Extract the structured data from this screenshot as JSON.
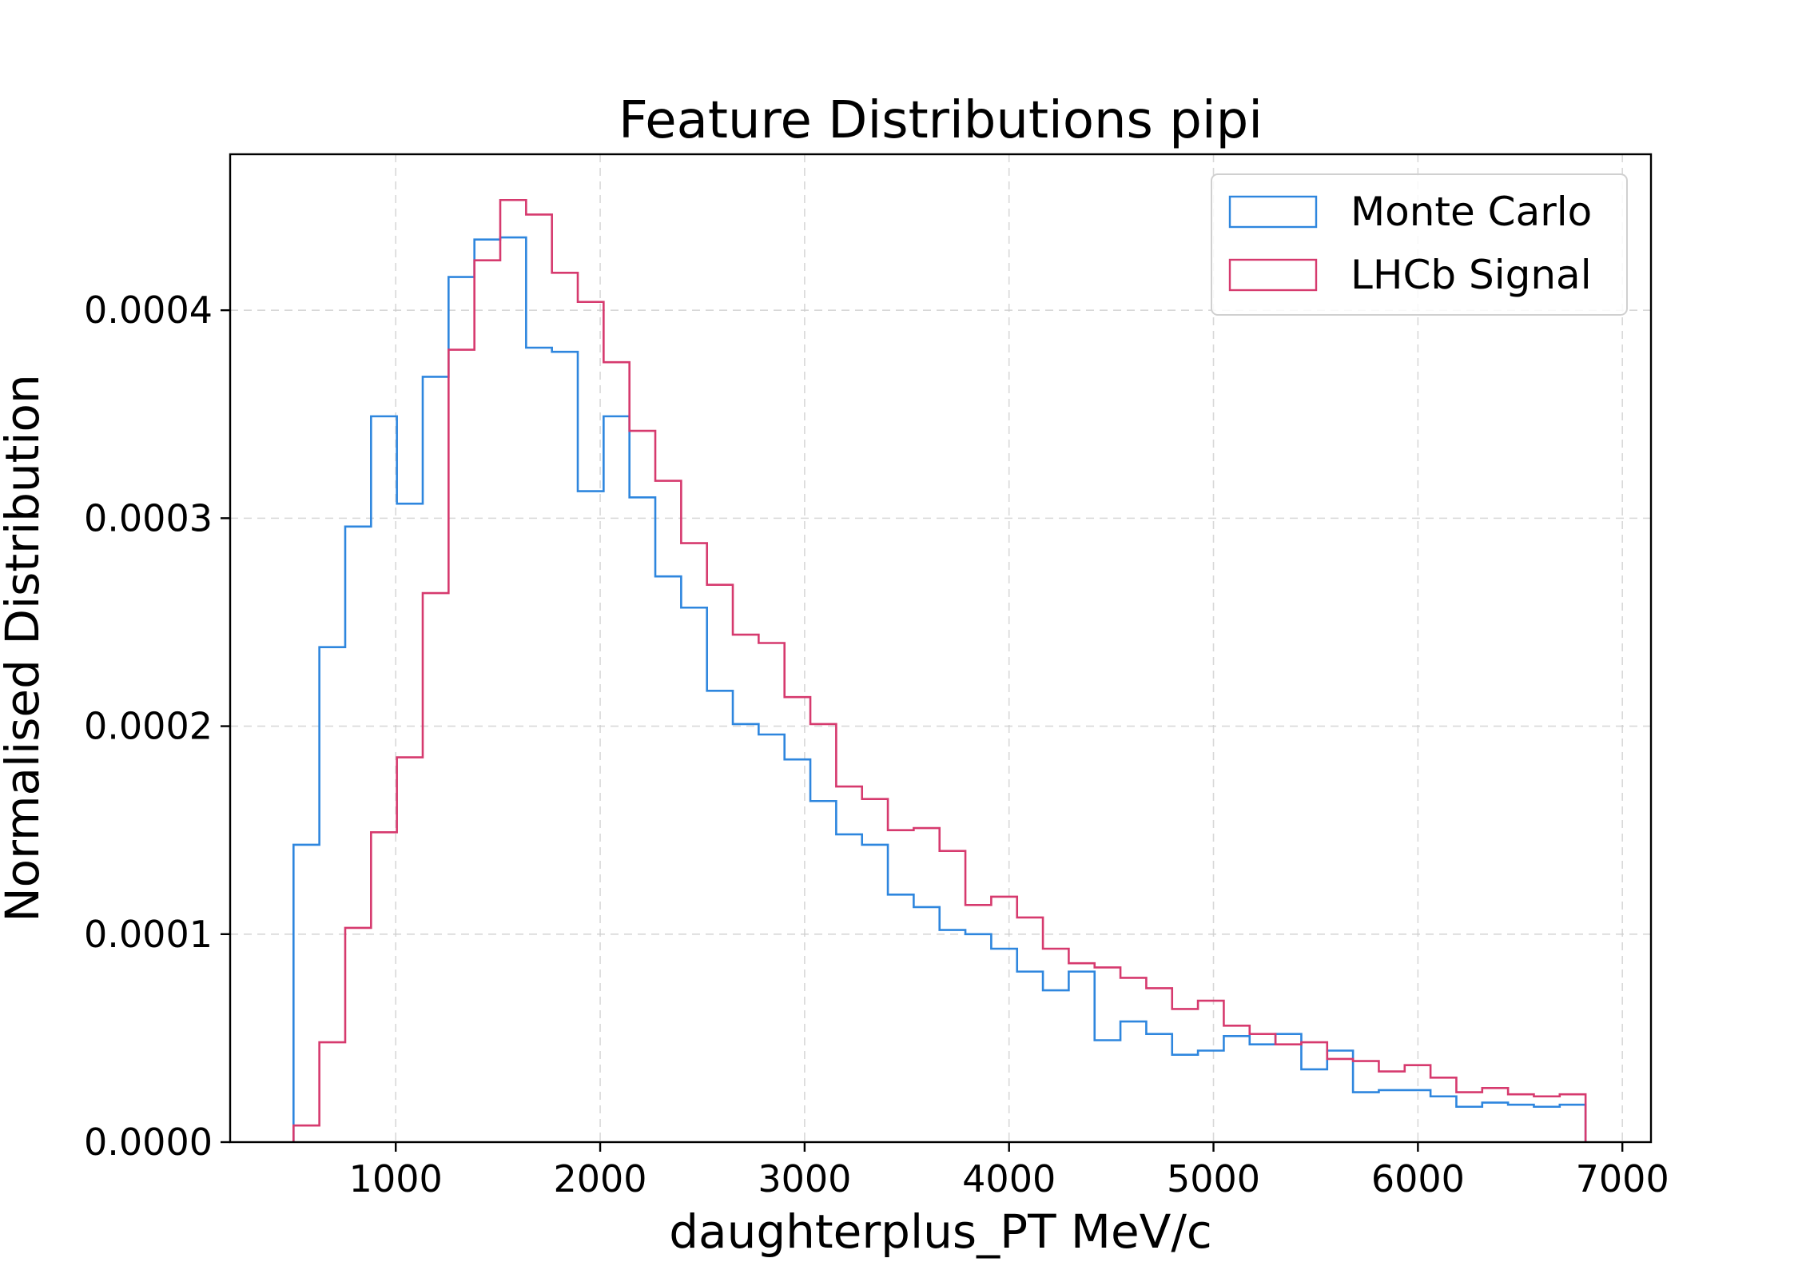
{
  "chart_data": {
    "type": "histogram",
    "title": "Feature Distributions pipi",
    "xlabel": "daughterplus_PT MeV/c",
    "ylabel": "Normalised Distribution",
    "xlim": [
      190,
      7140
    ],
    "ylim": [
      0,
      0.000475
    ],
    "xticks": [
      1000,
      2000,
      3000,
      4000,
      5000,
      6000,
      7000
    ],
    "xtick_labels": [
      "1000",
      "2000",
      "3000",
      "4000",
      "5000",
      "6000",
      "7000"
    ],
    "yticks": [
      0,
      0.0001,
      0.0002,
      0.0003,
      0.0004
    ],
    "ytick_labels": [
      "0.0000",
      "0.0001",
      "0.0002",
      "0.0003",
      "0.0004"
    ],
    "grid": true,
    "legend_position": "top-right",
    "bin_start": 500,
    "bin_width": 126.4,
    "series": [
      {
        "name": "Monte Carlo",
        "color": "#2e86de",
        "values": [
          0.000143,
          0.000238,
          0.000296,
          0.000349,
          0.000307,
          0.000368,
          0.000416,
          0.000434,
          0.000435,
          0.000382,
          0.00038,
          0.000313,
          0.000349,
          0.00031,
          0.000272,
          0.000257,
          0.000217,
          0.000201,
          0.000196,
          0.000184,
          0.000164,
          0.000148,
          0.000143,
          0.000119,
          0.000113,
          0.000102,
          0.0001,
          9.3e-05,
          8.2e-05,
          7.3e-05,
          8.2e-05,
          4.9e-05,
          5.8e-05,
          5.2e-05,
          4.2e-05,
          4.4e-05,
          5.1e-05,
          4.7e-05,
          5.2e-05,
          3.5e-05,
          4.4e-05,
          2.4e-05,
          2.5e-05,
          2.5e-05,
          2.2e-05,
          1.7e-05,
          1.9e-05,
          1.8e-05,
          1.7e-05,
          1.8e-05
        ]
      },
      {
        "name": "LHCb Signal",
        "color": "#d63a6e",
        "values": [
          8e-06,
          4.8e-05,
          0.000103,
          0.000149,
          0.000185,
          0.000264,
          0.000381,
          0.000424,
          0.000453,
          0.000446,
          0.000418,
          0.000404,
          0.000375,
          0.000342,
          0.000318,
          0.000288,
          0.000268,
          0.000244,
          0.00024,
          0.000214,
          0.000201,
          0.000171,
          0.000165,
          0.00015,
          0.000151,
          0.00014,
          0.000114,
          0.000118,
          0.000108,
          9.3e-05,
          8.6e-05,
          8.4e-05,
          7.9e-05,
          7.4e-05,
          6.4e-05,
          6.8e-05,
          5.6e-05,
          5.2e-05,
          4.7e-05,
          4.8e-05,
          4e-05,
          3.9e-05,
          3.4e-05,
          3.7e-05,
          3.1e-05,
          2.4e-05,
          2.6e-05,
          2.3e-05,
          2.2e-05,
          2.3e-05
        ]
      }
    ]
  }
}
